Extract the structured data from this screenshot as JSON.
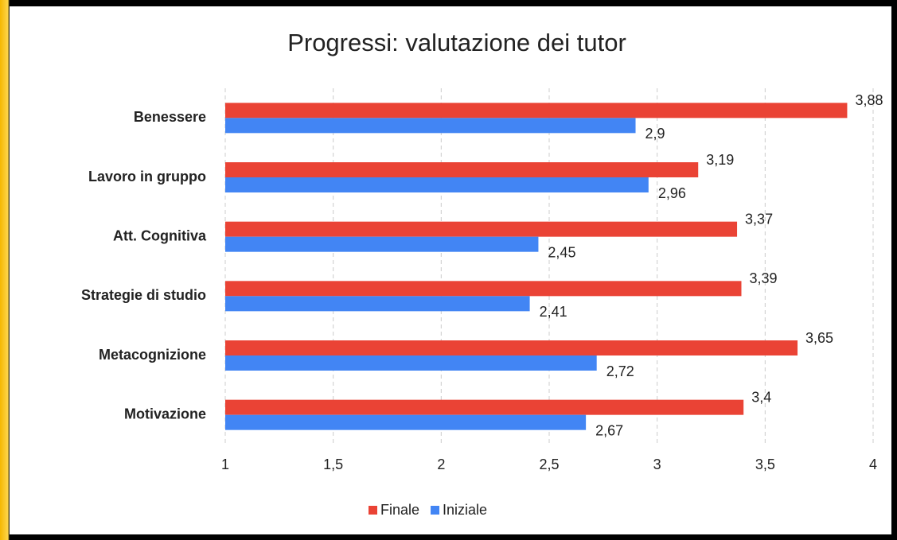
{
  "chart_data": {
    "type": "hbar",
    "title": "Progressi: valutazione dei tutor",
    "categories": [
      "Benessere",
      "Lavoro in gruppo",
      "Att. Cognitiva",
      "Strategie di studio",
      "Metacognizione",
      "Motivazione"
    ],
    "series": [
      {
        "name": "Finale",
        "color": "#ea4335",
        "values": [
          3.88,
          3.19,
          3.37,
          3.39,
          3.65,
          3.4
        ],
        "value_labels": [
          "3,88",
          "3,19",
          "3,37",
          "3,39",
          "3,65",
          "3,4"
        ]
      },
      {
        "name": "Iniziale",
        "color": "#4285f4",
        "values": [
          2.9,
          2.96,
          2.45,
          2.41,
          2.72,
          2.67
        ],
        "value_labels": [
          "2,9",
          "2,96",
          "2,45",
          "2,41",
          "2,72",
          "2,67"
        ]
      }
    ],
    "xlim": [
      1,
      4
    ],
    "xticks": [
      1,
      {
        "value": 1.5,
        "label": "1,5"
      },
      2,
      {
        "value": 2.5,
        "label": "2,5"
      },
      3,
      {
        "value": 3.5,
        "label": "3,5"
      },
      4
    ],
    "grid": true,
    "legend": "bottom"
  }
}
